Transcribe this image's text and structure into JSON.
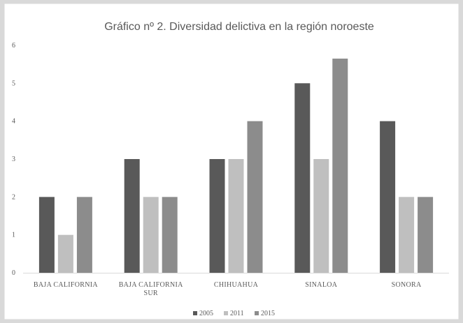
{
  "chart_data": {
    "type": "bar",
    "title": "Gráfico nº 2. Diversidad delictiva en la región noroeste",
    "xlabel": "",
    "ylabel": "",
    "ylim": [
      0,
      6
    ],
    "yticks": [
      0,
      1,
      2,
      3,
      4,
      5,
      6
    ],
    "grid": false,
    "legend_position": "bottom",
    "categories": [
      [
        "BAJA CALIFORNIA"
      ],
      [
        "BAJA CALIFORNIA",
        "SUR"
      ],
      [
        "CHIHUAHUA"
      ],
      [
        "SINALOA"
      ],
      [
        "SONORA"
      ]
    ],
    "series": [
      {
        "name": "2005",
        "values": [
          2,
          3,
          3,
          5,
          4
        ],
        "color": "#595959"
      },
      {
        "name": "2011",
        "values": [
          1,
          2,
          3,
          3,
          2
        ],
        "color": "#bfbfbf"
      },
      {
        "name": "2015",
        "values": [
          2,
          2,
          4,
          5.65,
          2
        ],
        "color": "#8c8c8c"
      }
    ]
  }
}
